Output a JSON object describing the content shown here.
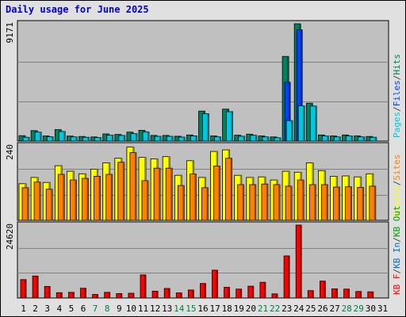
{
  "chart_data": {
    "type": "bar",
    "title": "Daily usage for June 2025",
    "days": [
      "1",
      "2",
      "3",
      "4",
      "5",
      "6",
      "7",
      "8",
      "9",
      "10",
      "11",
      "12",
      "13",
      "14",
      "15",
      "16",
      "17",
      "18",
      "19",
      "20",
      "21",
      "22",
      "23",
      "24",
      "25",
      "26",
      "27",
      "28",
      "29",
      "30",
      "31"
    ],
    "weekend_days": [
      "7",
      "8",
      "14",
      "15",
      "21",
      "22",
      "28",
      "29"
    ],
    "panels": [
      {
        "id": "hits_files_pages",
        "ymax_label": "9171",
        "ymax": 9171,
        "legend": [
          {
            "text": "Pages",
            "color": "#00c8e0"
          },
          {
            "text": "/",
            "color": "#444444"
          },
          {
            "text": "Files",
            "color": "#0040ff"
          },
          {
            "text": "/",
            "color": "#444444"
          },
          {
            "text": "Hits",
            "color": "#008060"
          }
        ],
        "series": [
          {
            "name": "Hits",
            "color": "#008060",
            "values": [
              420,
              820,
              400,
              900,
              390,
              360,
              320,
              560,
              520,
              700,
              840,
              440,
              440,
              380,
              480,
              2340,
              400,
              2500,
              460,
              540,
              400,
              320,
              6620,
              9171,
              2960,
              480,
              400,
              480,
              400,
              360,
              0
            ]
          },
          {
            "name": "Files",
            "color": "#0040ff",
            "values": [
              0,
              0,
              0,
              0,
              0,
              0,
              0,
              0,
              0,
              0,
              0,
              0,
              0,
              0,
              0,
              0,
              0,
              0,
              0,
              0,
              0,
              0,
              4600,
              8700,
              0,
              0,
              0,
              0,
              0,
              0,
              0
            ]
          },
          {
            "name": "Pages",
            "color": "#00c8e0",
            "values": [
              300,
              700,
              340,
              750,
              330,
              300,
              270,
              470,
              440,
              590,
              720,
              370,
              370,
              310,
              410,
              2140,
              330,
              2300,
              380,
              450,
              330,
              260,
              1600,
              2760,
              2740,
              400,
              330,
              400,
              330,
              300,
              0
            ]
          }
        ]
      },
      {
        "id": "visits_sites",
        "ymax_label": "240",
        "ymax": 240,
        "legend": [
          {
            "text": "Visits",
            "color": "#ffff00"
          },
          {
            "text": "/",
            "color": "#444444"
          },
          {
            "text": "Sites",
            "color": "#ff8000"
          }
        ],
        "series": [
          {
            "name": "Visits",
            "color": "#ffff00",
            "values": [
              118,
              138,
              122,
              176,
              158,
              150,
              165,
              185,
              200,
              236,
              203,
              198,
              205,
              145,
              192,
              138,
              222,
              227,
              145,
              138,
              140,
              130,
              158,
              155,
              185,
              160,
              142,
              143,
              140,
              150,
              0
            ]
          },
          {
            "name": "Sites",
            "color": "#ff8000",
            "values": [
              105,
              123,
              100,
              148,
              130,
              135,
              142,
              148,
              187,
              218,
              128,
              168,
              168,
              112,
              149,
              105,
              175,
              200,
              115,
              115,
              117,
              115,
              110,
              130,
              115,
              115,
              107,
              108,
              106,
              110,
              0
            ]
          }
        ]
      },
      {
        "id": "kbin_kbout_kbf",
        "ymax_label": "24620",
        "ymax": 24620,
        "legend": [
          {
            "text": "KB F",
            "color": "#ff0000"
          },
          {
            "text": "/",
            "color": "#444444"
          },
          {
            "text": "KB In",
            "color": "#0070c0"
          },
          {
            "text": "/",
            "color": "#444444"
          },
          {
            "text": "KB Out",
            "color": "#00a000"
          }
        ],
        "series": [
          {
            "name": "KB F",
            "color": "#ff0000",
            "values": [
              6200,
              7400,
              3900,
              1800,
              1900,
              3300,
              1200,
              1900,
              1500,
              1600,
              7800,
              2300,
              3200,
              1700,
              2700,
              4900,
              9400,
              3600,
              3000,
              4000,
              5300,
              1400,
              14200,
              24620,
              2500,
              5700,
              3100,
              3000,
              2200,
              2100,
              0
            ]
          }
        ]
      }
    ]
  }
}
